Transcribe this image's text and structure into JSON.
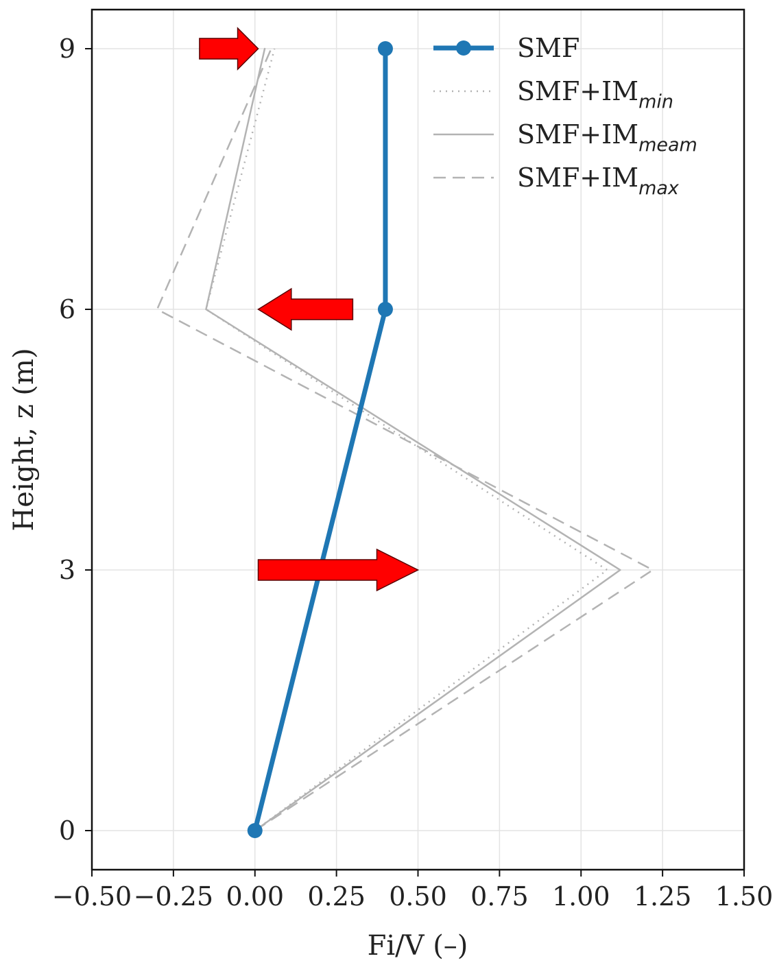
{
  "chart_data": {
    "type": "line",
    "title": "",
    "xlabel": "Fi/V (–)",
    "ylabel": "Height, z (m)",
    "xlim": [
      -0.5,
      1.5
    ],
    "ylim": [
      -0.45,
      9.45
    ],
    "xticks": [
      -0.5,
      -0.25,
      0.0,
      0.25,
      0.5,
      0.75,
      1.0,
      1.25,
      1.5
    ],
    "xtick_labels": [
      "−0.50",
      "−0.25",
      "0.00",
      "0.25",
      "0.50",
      "0.75",
      "1.00",
      "1.25",
      "1.50"
    ],
    "yticks": [
      0,
      3,
      6,
      9
    ],
    "ytick_labels": [
      "0",
      "3",
      "6",
      "9"
    ],
    "grid": true,
    "legend_position": "top-right",
    "series": [
      {
        "name": "SMF",
        "legend_main": "SMF+IM",
        "legend_sub": "",
        "style": "solid-marker",
        "color": "#1f77b4",
        "x": [
          0.0,
          0.4,
          0.4
        ],
        "y": [
          0,
          6,
          9
        ]
      },
      {
        "name": "SMF+IMmin",
        "legend_main": "SMF+IM",
        "legend_sub": "min",
        "style": "dotted",
        "color": "#b3b3b3",
        "x": [
          0.0,
          1.08,
          -0.15,
          0.06
        ],
        "y": [
          0,
          3,
          6,
          9
        ]
      },
      {
        "name": "SMF+IMmeam",
        "legend_main": "SMF+IM",
        "legend_sub": "meam",
        "style": "solid",
        "color": "#b3b3b3",
        "x": [
          0.0,
          1.12,
          -0.15,
          0.03
        ],
        "y": [
          0,
          3,
          6,
          9
        ]
      },
      {
        "name": "SMF+IMmax",
        "legend_main": "SMF+IM",
        "legend_sub": "max",
        "style": "dashed",
        "color": "#b3b3b3",
        "x": [
          0.0,
          1.22,
          -0.3,
          0.05
        ],
        "y": [
          0,
          3,
          6,
          9
        ]
      }
    ],
    "arrows": [
      {
        "y": 9,
        "x_from": -0.17,
        "x_to": 0.01,
        "color": "#ff0000"
      },
      {
        "y": 6,
        "x_from": 0.3,
        "x_to": 0.01,
        "color": "#ff0000"
      },
      {
        "y": 3,
        "x_from": 0.01,
        "x_to": 0.5,
        "color": "#ff0000"
      }
    ]
  }
}
